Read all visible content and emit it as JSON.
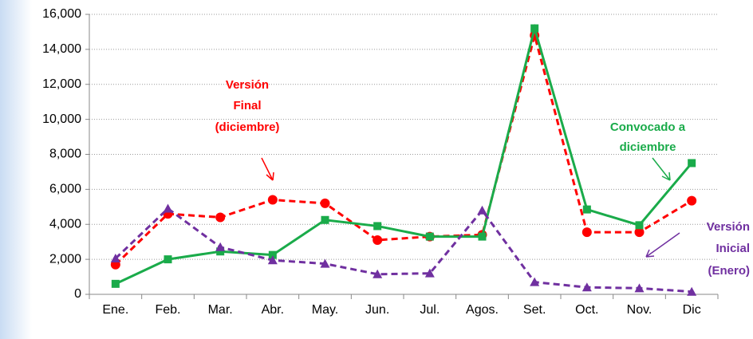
{
  "chart_data": {
    "type": "line",
    "categories": [
      "Ene.",
      "Feb.",
      "Mar.",
      "Abr.",
      "May.",
      "Jun.",
      "Jul.",
      "Agos.",
      "Set.",
      "Oct.",
      "Nov.",
      "Dic"
    ],
    "series": [
      {
        "label": [
          "Versión",
          "Final",
          "(diciembre)"
        ],
        "color": "#ff0000",
        "dash": true,
        "marker": "circle",
        "values": [
          1700,
          4600,
          4400,
          5400,
          5200,
          3100,
          3300,
          3400,
          14800,
          3550,
          3550,
          5350
        ]
      },
      {
        "label": [
          "Convocado a",
          "diciembre"
        ],
        "color": "#1aab4a",
        "dash": false,
        "marker": "square",
        "values": [
          600,
          2000,
          2450,
          2250,
          4250,
          3900,
          3300,
          3300,
          15200,
          4850,
          3950,
          7500
        ]
      },
      {
        "label": [
          "Versión",
          "Inicial",
          "(Enero)"
        ],
        "color": "#7030a0",
        "dash": true,
        "marker": "triangle",
        "values": [
          2050,
          4900,
          2700,
          1950,
          1750,
          1150,
          1200,
          4800,
          700,
          400,
          350,
          150
        ]
      }
    ],
    "ylim": [
      0,
      16000
    ],
    "yticks": [
      0,
      {
        "value": 2000,
        "label": "2,000"
      },
      {
        "value": 4000,
        "label": "4,000"
      },
      {
        "value": 6000,
        "label": "6,000"
      },
      {
        "value": 8000,
        "label": "8,000"
      },
      {
        "value": 10000,
        "label": "10,000"
      },
      {
        "value": 12000,
        "label": "12,000"
      },
      {
        "value": 14000,
        "label": "14,000"
      },
      {
        "value": 16000,
        "label": "16,000"
      }
    ],
    "grid": true
  }
}
